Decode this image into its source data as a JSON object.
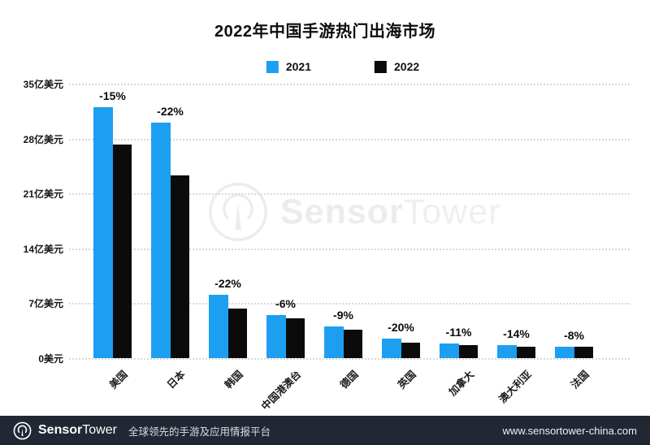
{
  "title": "2022年中国手游热门出海市场",
  "chart_data": {
    "type": "bar",
    "title": "2022年中国手游热门出海市场",
    "categories": [
      "美国",
      "日本",
      "韩国",
      "中国港澳台",
      "德国",
      "英国",
      "加拿大",
      "澳大利亚",
      "法国"
    ],
    "series": [
      {
        "name": "2021",
        "color": "#1C9FF1",
        "values": [
          32.0,
          30.0,
          8.1,
          5.5,
          4.0,
          2.5,
          1.9,
          1.7,
          1.5
        ]
      },
      {
        "name": "2022",
        "color": "#0B0B0B",
        "values": [
          27.2,
          23.3,
          6.3,
          5.1,
          3.6,
          2.0,
          1.7,
          1.5,
          1.4
        ]
      }
    ],
    "bar_labels": [
      "-15%",
      "-22%",
      "-22%",
      "-6%",
      "-9%",
      "-20%",
      "-11%",
      "-14%",
      "-8%"
    ],
    "unit": "亿美元",
    "ylim": [
      0,
      35
    ],
    "yticks": [
      {
        "value": 0,
        "label": "0美元"
      },
      {
        "value": 7,
        "label": "7亿美元"
      },
      {
        "value": 14,
        "label": "14亿美元"
      },
      {
        "value": 21,
        "label": "21亿美元"
      },
      {
        "value": 28,
        "label": "28亿美元"
      },
      {
        "value": 35,
        "label": "35亿美元"
      }
    ],
    "grid": "horizontal-dotted",
    "legend_position": "top-center"
  },
  "watermark": {
    "brand_bold": "Sensor",
    "brand_light": "Tower"
  },
  "footer": {
    "brand_bold": "Sensor",
    "brand_light": "Tower",
    "tagline": "全球领先的手游及应用情报平台",
    "website": "www.sensortower-china.com"
  },
  "colors": {
    "bar_2021": "#1C9FF1",
    "bar_2022": "#0B0B0B",
    "footer_bg": "#212834",
    "gridline": "#d9d9d9",
    "watermark": "#ececec"
  }
}
